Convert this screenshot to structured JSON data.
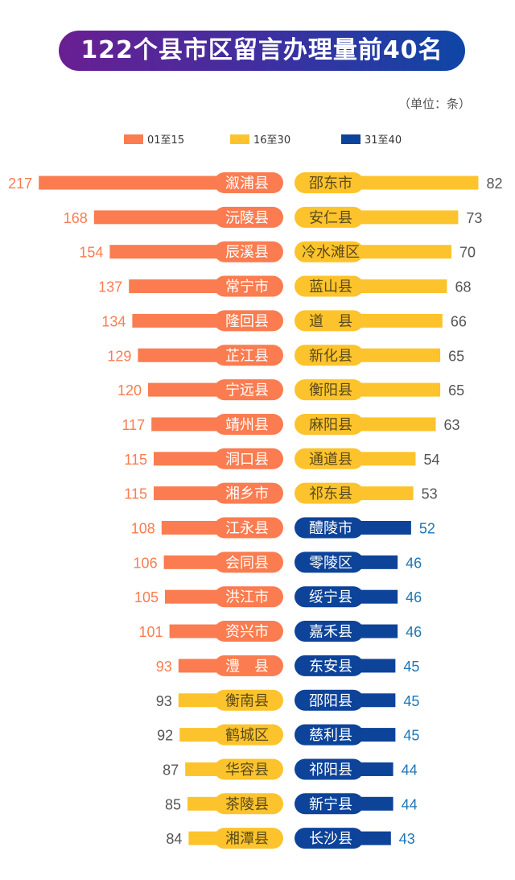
{
  "title": "122个县市区留言办理量前40名",
  "unit_note": "（单位：条）",
  "colors": {
    "orange": "#fa7c50",
    "yellow": "#fcc32c",
    "navy": "#0d4399",
    "blue_text": "#1e76b7",
    "dark_text": "#555555"
  },
  "legend": [
    {
      "label": "01至15",
      "color": "#fa7c50"
    },
    {
      "label": "16至30",
      "color": "#fcc32c"
    },
    {
      "label": "31至40",
      "color": "#0d4399"
    }
  ],
  "chart_data": {
    "type": "bar",
    "left_series": [
      {
        "name": "溆浦县",
        "value": 217,
        "group": "01至15"
      },
      {
        "name": "沅陵县",
        "value": 168,
        "group": "01至15"
      },
      {
        "name": "辰溪县",
        "value": 154,
        "group": "01至15"
      },
      {
        "name": "常宁市",
        "value": 137,
        "group": "01至15"
      },
      {
        "name": "隆回县",
        "value": 134,
        "group": "01至15"
      },
      {
        "name": "芷江县",
        "value": 129,
        "group": "01至15"
      },
      {
        "name": "宁远县",
        "value": 120,
        "group": "01至15"
      },
      {
        "name": "靖州县",
        "value": 117,
        "group": "01至15"
      },
      {
        "name": "洞口县",
        "value": 115,
        "group": "01至15"
      },
      {
        "name": "湘乡市",
        "value": 115,
        "group": "01至15"
      },
      {
        "name": "江永县",
        "value": 108,
        "group": "01至15"
      },
      {
        "name": "会同县",
        "value": 106,
        "group": "01至15"
      },
      {
        "name": "洪江市",
        "value": 105,
        "group": "01至15"
      },
      {
        "name": "资兴市",
        "value": 101,
        "group": "01至15"
      },
      {
        "name": "澧　县",
        "value": 93,
        "group": "01至15"
      },
      {
        "name": "衡南县",
        "value": 93,
        "group": "16至30"
      },
      {
        "name": "鹤城区",
        "value": 92,
        "group": "16至30"
      },
      {
        "name": "华容县",
        "value": 87,
        "group": "16至30"
      },
      {
        "name": "茶陵县",
        "value": 85,
        "group": "16至30"
      },
      {
        "name": "湘潭县",
        "value": 84,
        "group": "16至30"
      }
    ],
    "right_series": [
      {
        "name": "邵东市",
        "value": 82,
        "group": "16至30"
      },
      {
        "name": "安仁县",
        "value": 73,
        "group": "16至30"
      },
      {
        "name": "冷水滩区",
        "value": 70,
        "group": "16至30"
      },
      {
        "name": "蓝山县",
        "value": 68,
        "group": "16至30"
      },
      {
        "name": "道　县",
        "value": 66,
        "group": "16至30"
      },
      {
        "name": "新化县",
        "value": 65,
        "group": "16至30"
      },
      {
        "name": "衡阳县",
        "value": 65,
        "group": "16至30"
      },
      {
        "name": "麻阳县",
        "value": 63,
        "group": "16至30"
      },
      {
        "name": "通道县",
        "value": 54,
        "group": "16至30"
      },
      {
        "name": "祁东县",
        "value": 53,
        "group": "16至30"
      },
      {
        "name": "醴陵市",
        "value": 52,
        "group": "31至40"
      },
      {
        "name": "零陵区",
        "value": 46,
        "group": "31至40"
      },
      {
        "name": "绥宁县",
        "value": 46,
        "group": "31至40"
      },
      {
        "name": "嘉禾县",
        "value": 46,
        "group": "31至40"
      },
      {
        "name": "东安县",
        "value": 45,
        "group": "31至40"
      },
      {
        "name": "邵阳县",
        "value": 45,
        "group": "31至40"
      },
      {
        "name": "慈利县",
        "value": 45,
        "group": "31至40"
      },
      {
        "name": "祁阳县",
        "value": 44,
        "group": "31至40"
      },
      {
        "name": "新宁县",
        "value": 44,
        "group": "31至40"
      },
      {
        "name": "长沙县",
        "value": 43,
        "group": "31至40"
      }
    ]
  }
}
